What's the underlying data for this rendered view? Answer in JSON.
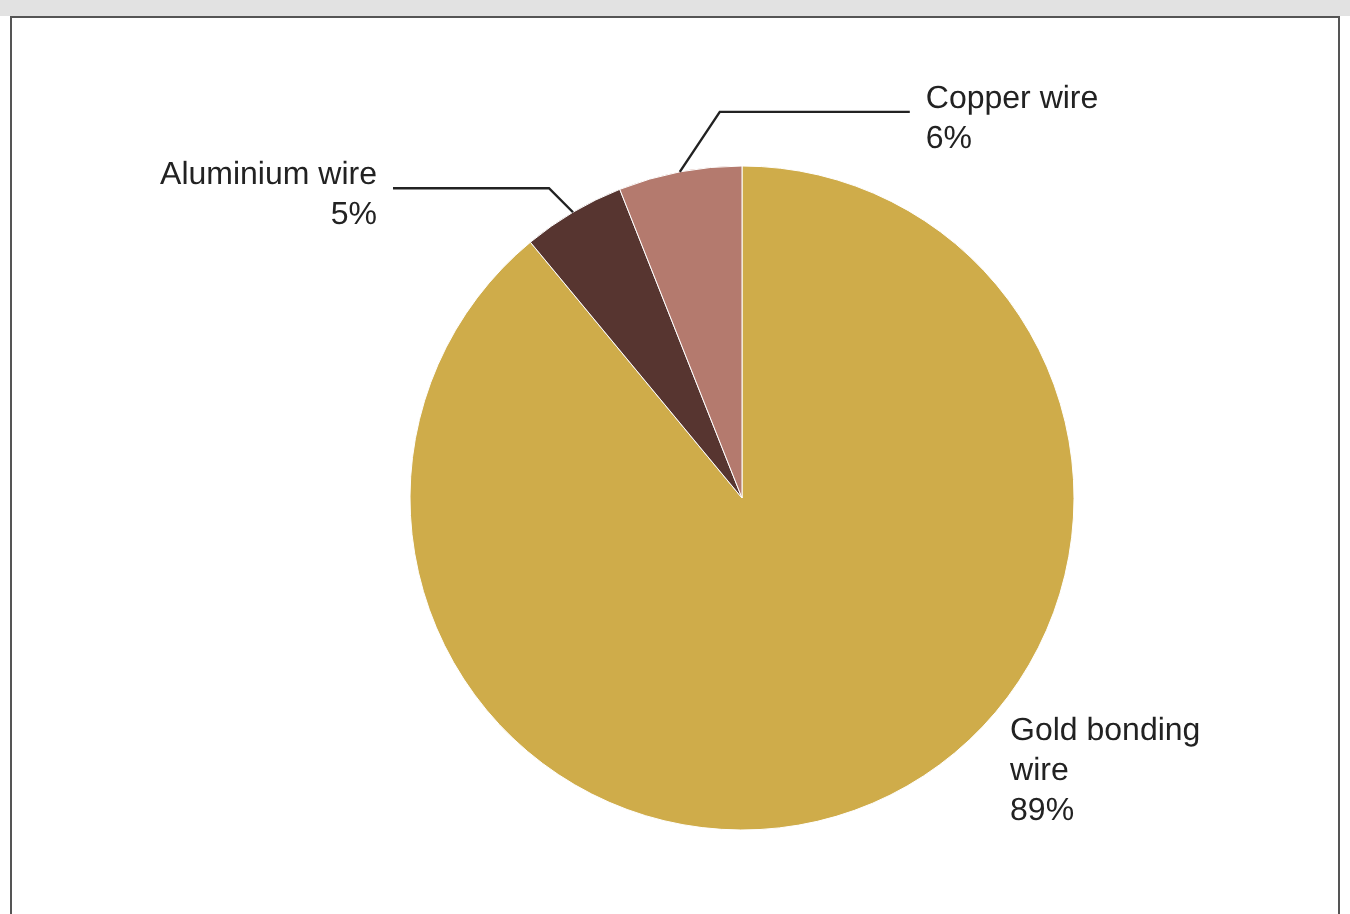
{
  "chart_data": {
    "type": "pie",
    "categories": [
      "Gold bonding wire",
      "Aluminium wire",
      "Copper wire"
    ],
    "values": [
      89,
      5,
      6
    ],
    "value_labels": [
      "89%",
      "5%",
      "6%"
    ],
    "colors": [
      "#cfac4a",
      "#573530",
      "#b47a6e"
    ]
  }
}
